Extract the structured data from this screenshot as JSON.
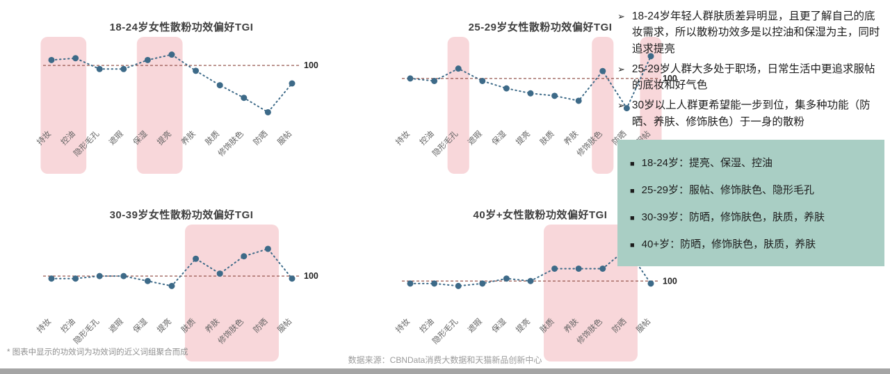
{
  "page": {
    "footnote": "* 图表中显示的功效词为功效词的近义词组聚合而成",
    "source": "数据来源：CBNData消费大数据和天猫新品创新中心"
  },
  "colors": {
    "point": "#3d6a88",
    "dotted_line": "#3d6a88",
    "ref_line": "#96564e",
    "ref_label": "#222222",
    "highlight_band": "#f8d7da",
    "axis_label": "#636363",
    "summary_bg": "#a9cec4"
  },
  "chart_data": [
    {
      "type": "line",
      "title": "18-24岁女性散粉功效偏好TGI",
      "categories": [
        "持妆",
        "控油",
        "隐形毛孔",
        "遮瑕",
        "保湿",
        "提亮",
        "养肤",
        "肤质",
        "修饰肤色",
        "防晒",
        "服帖"
      ],
      "values": [
        103,
        104,
        98,
        98,
        103,
        106,
        97,
        89,
        82,
        74,
        90
      ],
      "ref_value": 100,
      "ref_label": "100",
      "ylim": [
        68,
        112
      ],
      "highlight_ranges": [
        [
          0,
          1
        ],
        [
          4,
          5
        ]
      ],
      "grid": false,
      "legend": "none"
    },
    {
      "type": "line",
      "title": "25-29岁女性散粉功效偏好TGI",
      "categories": [
        "持妆",
        "控油",
        "隐形毛孔",
        "遮瑕",
        "保湿",
        "提亮",
        "肤质",
        "养肤",
        "修饰肤色",
        "防晒",
        "服帖"
      ],
      "values": [
        100,
        99,
        104,
        99,
        96,
        94,
        93,
        91,
        103,
        88,
        109
      ],
      "ref_value": 100,
      "ref_label": "100",
      "ylim": [
        82,
        114
      ],
      "highlight_ranges": [
        [
          2,
          2
        ],
        [
          8,
          8
        ],
        [
          10,
          10
        ]
      ],
      "grid": false,
      "legend": "none"
    },
    {
      "type": "line",
      "title": "30-39岁女性散粉功效偏好TGI",
      "categories": [
        "持妆",
        "控油",
        "隐形毛孔",
        "遮瑕",
        "保湿",
        "提亮",
        "肤质",
        "养肤",
        "修饰肤色",
        "防晒",
        "服帖"
      ],
      "values": [
        99,
        99,
        100,
        100,
        98,
        96,
        107,
        101,
        108,
        111,
        99
      ],
      "ref_value": 100,
      "ref_label": "100",
      "ylim": [
        86,
        118
      ],
      "highlight_ranges": [
        [
          6,
          9
        ]
      ],
      "grid": false,
      "legend": "none"
    },
    {
      "type": "line",
      "title": "40岁+女性散粉功效偏好TGI",
      "categories": [
        "持妆",
        "控油",
        "隐形毛孔",
        "遮瑕",
        "保湿",
        "提亮",
        "肤质",
        "养肤",
        "修饰肤色",
        "防晒",
        "服帖"
      ],
      "values": [
        99,
        99,
        98,
        99,
        101,
        100,
        105,
        105,
        105,
        113,
        99
      ],
      "ref_value": 100,
      "ref_label": "100",
      "ylim": [
        88,
        120
      ],
      "highlight_ranges": [
        [
          6,
          9
        ]
      ],
      "grid": false,
      "legend": "none"
    }
  ],
  "insights": {
    "bullet_marker": "➢",
    "bullets": [
      "18-24岁年轻人群肤质差异明显，且更了解自己的底妆需求，所以散粉功效多是以控油和保湿为主，同时追求提亮",
      "25-29岁人群大多处于职场，日常生活中更追求服帖的底妆和好气色",
      "30岁以上人群更希望能一步到位，集多种功能（防晒、养肤、修饰肤色）于一身的散粉"
    ],
    "summary": {
      "marker": "■",
      "items": [
        "18-24岁：提亮、保湿、控油",
        "25-29岁：服帖、修饰肤色、隐形毛孔",
        "30-39岁：防晒，修饰肤色，肤质，养肤",
        "40+岁：防晒，修饰肤色，肤质，养肤"
      ]
    }
  }
}
